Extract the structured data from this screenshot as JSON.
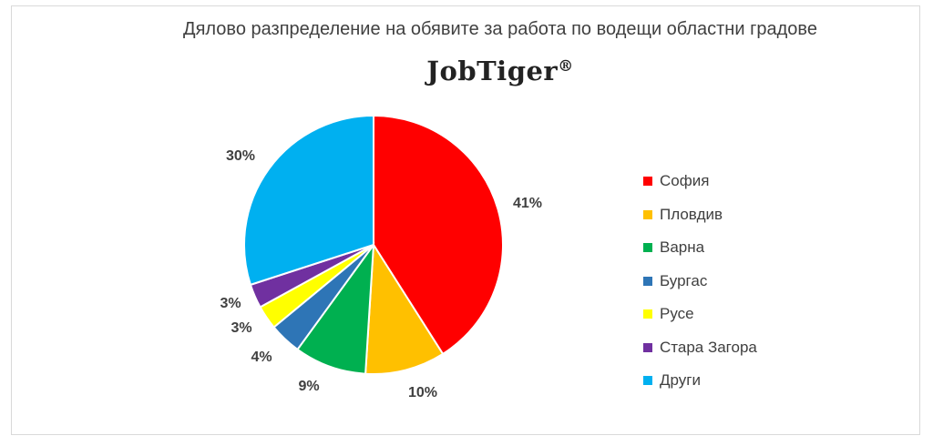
{
  "chart_data": {
    "type": "pie",
    "title": "Дялово разпределение на обявите за работа по водещи областни градове",
    "brand": "JobTiger",
    "brand_mark": "®",
    "legend_position": "right",
    "slices": [
      {
        "label": "София",
        "value": 41,
        "display": "41%",
        "color": "#ff0000"
      },
      {
        "label": "Пловдив",
        "value": 10,
        "display": "10%",
        "color": "#ffc000"
      },
      {
        "label": "Варна",
        "value": 9,
        "display": "9%",
        "color": "#00b050"
      },
      {
        "label": "Бургас",
        "value": 4,
        "display": "4%",
        "color": "#2e75b6"
      },
      {
        "label": "Русе",
        "value": 3,
        "display": "3%",
        "color": "#ffff00"
      },
      {
        "label": "Стара Загора",
        "value": 3,
        "display": "3%",
        "color": "#7030a0"
      },
      {
        "label": "Други",
        "value": 30,
        "display": "30%",
        "color": "#00b0f0"
      }
    ]
  }
}
